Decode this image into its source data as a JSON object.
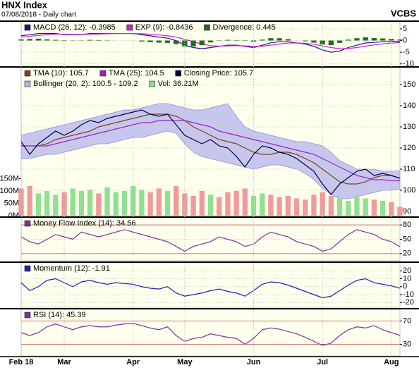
{
  "header": {
    "title": "HNX Index",
    "subtitle": "07/08/2018 - Daily chart",
    "source": "VCBS"
  },
  "chart_data": [
    {
      "type": "line",
      "ylim": [
        -11,
        8
      ],
      "yticks": [
        5,
        0,
        -5,
        -10
      ],
      "series": [
        {
          "name": "MACD (26, 12): -0.3985",
          "color": "#1414a0",
          "kind": "line",
          "values": [
            2,
            2.5,
            3,
            3,
            3,
            2.5,
            2.5,
            2.5,
            3,
            3,
            3,
            3,
            3,
            3,
            2.5,
            2,
            1.5,
            1,
            0,
            -2,
            -3,
            -3.5,
            -3,
            -2.5,
            -2,
            -2,
            -2.5,
            -3,
            -2,
            -1,
            -0.5,
            -0.5,
            -1,
            -1.5,
            -2.5,
            -4,
            -5,
            -4.5,
            -3,
            -2,
            -1,
            -0.8,
            -0.5,
            -0.4,
            -0.3985
          ]
        },
        {
          "name": "EXP (9): -0.8436",
          "color": "#d020d0",
          "kind": "line",
          "values": [
            1.5,
            1.8,
            2.2,
            2.5,
            2.7,
            2.7,
            2.6,
            2.6,
            2.7,
            2.8,
            2.9,
            3,
            3,
            3,
            2.9,
            2.7,
            2.4,
            2,
            1.5,
            0.5,
            -0.5,
            -1.5,
            -2.2,
            -2.4,
            -2.3,
            -2.2,
            -2.3,
            -2.5,
            -2.4,
            -2,
            -1.5,
            -1.1,
            -1,
            -1.2,
            -1.6,
            -2.3,
            -3,
            -3.5,
            -3.4,
            -3,
            -2.4,
            -1.9,
            -1.4,
            -1.1,
            -0.8436
          ]
        },
        {
          "name": "Divergence: 0.445",
          "color": "#207020",
          "kind": "bar",
          "values": [
            0.5,
            0.7,
            0.8,
            0.5,
            0.3,
            -0.2,
            -0.1,
            -0.1,
            0.3,
            0.2,
            0.1,
            0,
            0,
            0,
            -0.4,
            -0.7,
            -0.9,
            -1,
            -1.5,
            -2.5,
            -2.5,
            -2,
            -0.8,
            -0.1,
            0.3,
            0.2,
            -0.2,
            -0.5,
            0.4,
            1,
            1,
            0.6,
            0,
            -0.3,
            -0.9,
            -1.7,
            -2,
            -1,
            0.4,
            1,
            1.4,
            1.1,
            0.9,
            0.7,
            0.445
          ]
        }
      ]
    },
    {
      "type": "price",
      "ylim": [
        88,
        158
      ],
      "yticks": [
        150,
        140,
        130,
        120,
        110,
        100,
        90
      ],
      "y2lim": [
        0,
        600
      ],
      "y2ticks": [
        {
          "value": 150,
          "label": "150M"
        },
        {
          "value": 100,
          "label": "100M"
        },
        {
          "value": 50,
          "label": "50M"
        },
        {
          "value": 0,
          "label": "0M"
        }
      ],
      "band": {
        "name": "Bollinger (20, 2): 100.5 - 109.2",
        "color": "#b4b4ec",
        "upper": [
          126,
          127,
          128,
          129,
          130,
          131,
          132,
          133,
          134,
          135,
          136,
          137,
          138,
          138,
          139,
          140,
          141,
          141,
          140,
          139,
          138,
          138,
          139,
          140,
          141,
          135,
          130,
          128,
          127,
          126,
          125,
          124,
          123,
          123,
          122,
          121,
          118,
          114,
          112,
          110,
          110,
          110,
          109,
          109,
          109.2
        ],
        "lower": [
          115,
          115,
          116,
          117,
          117,
          118,
          119,
          120,
          121,
          122,
          122,
          123,
          124,
          125,
          125,
          126,
          127,
          128,
          127,
          122,
          118,
          116,
          115,
          114,
          113,
          112,
          111,
          110,
          111,
          112,
          112,
          111,
          110,
          108,
          105,
          101,
          98,
          96,
          96,
          97,
          98,
          99,
          100,
          100,
          100.5
        ]
      },
      "series": [
        {
          "name": "Vol: 36.21M",
          "color": "#90e090",
          "down_color": "#f09a9a",
          "kind": "bar",
          "axis": "y2",
          "values": [
            110,
            120,
            90,
            100,
            85,
            95,
            110,
            100,
            105,
            90,
            115,
            95,
            100,
            120,
            105,
            95,
            110,
            100,
            120,
            90,
            80,
            100,
            85,
            75,
            95,
            100,
            110,
            80,
            90,
            85,
            75,
            80,
            70,
            65,
            85,
            95,
            80,
            70,
            60,
            75,
            70,
            65,
            60,
            55,
            36.21
          ]
        },
        {
          "name": "TMA (10): 105.7",
          "color": "#804020",
          "kind": "line",
          "values": [
            121,
            121,
            121,
            122,
            124,
            125,
            126,
            127,
            128,
            130,
            131,
            132,
            133,
            134,
            135,
            136,
            136,
            136,
            135,
            133,
            130,
            128,
            126,
            124,
            123,
            122,
            120,
            118,
            117,
            117,
            118,
            118,
            117,
            115,
            113,
            110,
            107,
            104,
            103,
            103,
            104,
            106,
            107,
            107,
            105.7
          ]
        },
        {
          "name": "TMA (25): 104.5",
          "color": "#a020c0",
          "kind": "line",
          "values": [
            121,
            121,
            121,
            121,
            122,
            123,
            124,
            125,
            126,
            127,
            128,
            129,
            130,
            131,
            132,
            132,
            133,
            133,
            133,
            133,
            132,
            131,
            130,
            128,
            127,
            126,
            125,
            124,
            123,
            122,
            121,
            120,
            119,
            118,
            117,
            115,
            113,
            111,
            109,
            107,
            106,
            105,
            105,
            104.5,
            104.5
          ]
        },
        {
          "name": "Closing Price: 105.7",
          "color": "#000040",
          "kind": "line",
          "values": [
            123,
            117,
            122,
            125,
            128,
            126,
            128,
            131,
            133,
            132,
            134,
            135,
            136,
            137,
            138,
            136,
            135,
            136,
            131,
            126,
            124,
            122,
            124,
            121,
            120,
            116,
            111,
            117,
            121,
            120,
            118,
            117,
            115,
            112,
            109,
            103,
            98,
            103,
            106,
            109,
            110,
            107,
            108,
            107,
            105.7
          ]
        }
      ]
    },
    {
      "type": "line",
      "ylim": [
        5,
        95
      ],
      "yticks": [
        80,
        50,
        20
      ],
      "ref_lines": [
        80,
        20
      ],
      "series": [
        {
          "name": "Money Flow Index (14): 34.56",
          "color": "#8030a0",
          "kind": "line",
          "values": [
            55,
            45,
            40,
            50,
            60,
            55,
            50,
            65,
            60,
            55,
            60,
            65,
            70,
            65,
            60,
            55,
            50,
            45,
            35,
            25,
            35,
            40,
            45,
            55,
            50,
            45,
            35,
            40,
            55,
            65,
            60,
            55,
            45,
            40,
            35,
            25,
            30,
            45,
            60,
            70,
            65,
            60,
            50,
            45,
            34.56
          ]
        }
      ]
    },
    {
      "type": "line",
      "ylim": [
        -26,
        30
      ],
      "yticks": [
        20,
        10,
        0,
        -10,
        -20
      ],
      "series": [
        {
          "name": "Momentum (12): -1.91",
          "color": "#2020c0",
          "kind": "line",
          "values": [
            5,
            -5,
            0,
            8,
            10,
            5,
            0,
            6,
            8,
            5,
            3,
            5,
            4,
            3,
            0,
            -2,
            -3,
            0,
            -8,
            -12,
            -10,
            -8,
            -5,
            -3,
            -6,
            -8,
            -12,
            -5,
            3,
            6,
            5,
            2,
            -2,
            -6,
            -10,
            -14,
            -12,
            -5,
            2,
            8,
            10,
            5,
            3,
            1,
            -1.91
          ]
        }
      ]
    },
    {
      "type": "line",
      "ylim": [
        10,
        90
      ],
      "yticks": [
        70,
        30
      ],
      "ref_lines": [
        70,
        30
      ],
      "fill_below": 30,
      "fill_color": "#8050d0",
      "series": [
        {
          "name": "RSI (14): 45.39",
          "color": "#8030a0",
          "kind": "line",
          "values": [
            50,
            45,
            50,
            60,
            65,
            60,
            55,
            60,
            62,
            60,
            60,
            63,
            65,
            66,
            62,
            58,
            55,
            60,
            45,
            35,
            40,
            42,
            48,
            45,
            42,
            40,
            30,
            40,
            55,
            58,
            56,
            52,
            48,
            42,
            35,
            28,
            32,
            45,
            55,
            60,
            58,
            62,
            55,
            50,
            45.39
          ]
        }
      ],
      "categories": [
        "Feb 18",
        null,
        null,
        null,
        null,
        "Mar",
        null,
        null,
        null,
        null,
        null,
        null,
        null,
        "Apr",
        null,
        null,
        null,
        null,
        null,
        "May",
        null,
        null,
        null,
        null,
        null,
        null,
        null,
        "Jun",
        null,
        null,
        null,
        null,
        null,
        null,
        null,
        "Jul",
        null,
        null,
        null,
        null,
        null,
        null,
        null,
        "Aug",
        null
      ]
    }
  ]
}
